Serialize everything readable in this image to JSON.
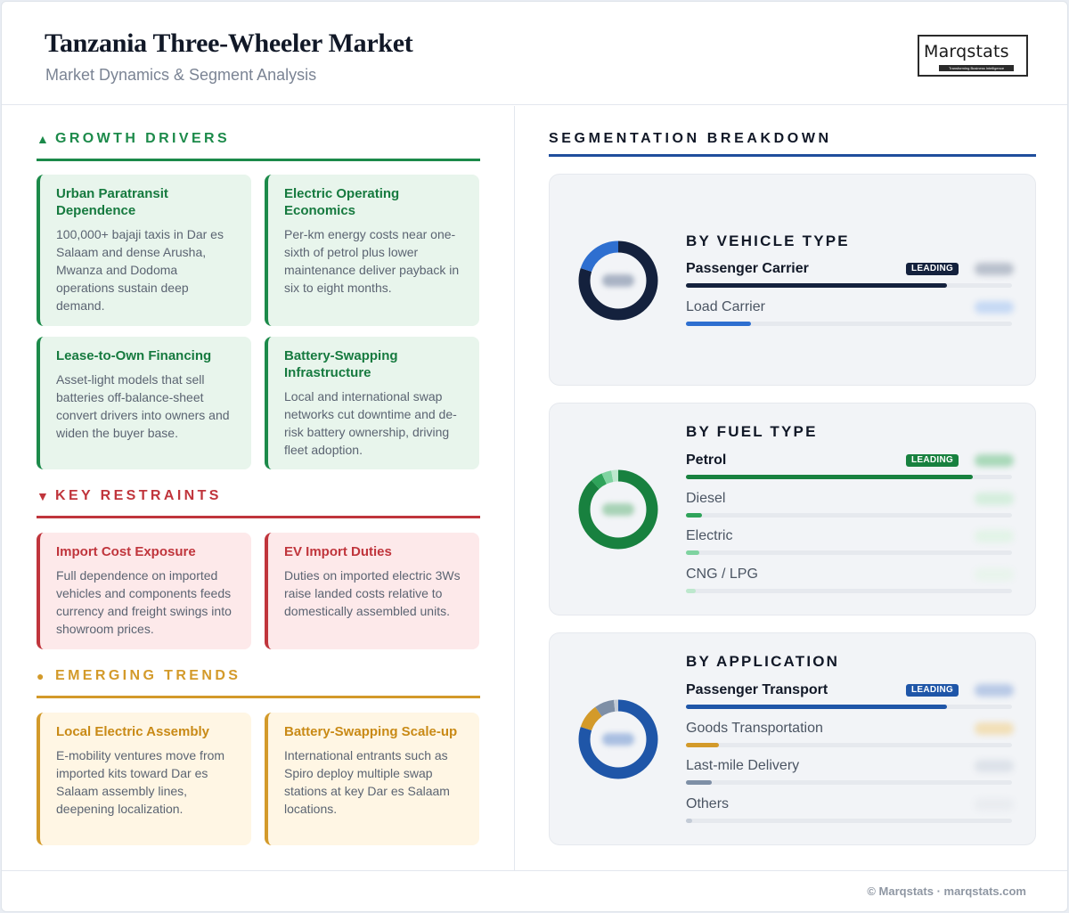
{
  "header": {
    "title": "Tanzania Three-Wheeler Market",
    "subtitle": "Market Dynamics & Segment Analysis",
    "logo_text": "Marqstats",
    "logo_tagline": "Transforming Business Intelligence"
  },
  "growth": {
    "marker": "▲",
    "label": "GROWTH DRIVERS",
    "color": "#1c8a4a",
    "cards": [
      {
        "title": "Urban Paratransit Dependence",
        "desc": "100,000+ bajaji taxis in Dar es Salaam and dense Arusha, Mwanza and Dodoma operations sustain deep demand."
      },
      {
        "title": "Electric Operating Economics",
        "desc": "Per-km energy costs near one-sixth of petrol plus lower maintenance deliver payback in six to eight months."
      },
      {
        "title": "Lease-to-Own Financing",
        "desc": "Asset-light models that sell batteries off-balance-sheet convert drivers into owners and widen the buyer base."
      },
      {
        "title": "Battery-Swapping Infrastructure",
        "desc": "Local and international swap networks cut downtime and de-risk battery ownership, driving fleet adoption."
      }
    ]
  },
  "restraints": {
    "marker": "▼",
    "label": "KEY RESTRAINTS",
    "color": "#c0353c",
    "cards": [
      {
        "title": "Import Cost Exposure",
        "desc": "Full dependence on imported vehicles and components feeds currency and freight swings into showroom prices."
      },
      {
        "title": "EV Import Duties",
        "desc": "Duties on imported electric 3Ws raise landed costs relative to domestically assembled units."
      }
    ]
  },
  "trends": {
    "marker": "●",
    "label": "EMERGING TRENDS",
    "color": "#d39a2a",
    "cards": [
      {
        "title": "Local Electric Assembly",
        "desc": "E-mobility ventures move from imported kits toward Dar es Salaam assembly lines, deepening localization."
      },
      {
        "title": "Battery-Swapping Scale-up",
        "desc": "International entrants such as Spiro deploy multiple swap stations at key Dar es Salaam locations."
      }
    ]
  },
  "segmentation": {
    "title": "SEGMENTATION BREAKDOWN",
    "leading_label": "LEADING",
    "panels": [
      {
        "title": "BY VEHICLE TYPE",
        "segments": [
          {
            "label": "Passenger Carrier",
            "share": 0.8,
            "color": "#14213d",
            "leading": true
          },
          {
            "label": "Load Carrier",
            "share": 0.2,
            "color": "#2e6fd0",
            "leading": false
          }
        ]
      },
      {
        "title": "BY FUEL TYPE",
        "segments": [
          {
            "label": "Petrol",
            "share": 0.88,
            "color": "#18813f",
            "leading": true
          },
          {
            "label": "Diesel",
            "share": 0.05,
            "color": "#2fa35a",
            "leading": false
          },
          {
            "label": "Electric",
            "share": 0.04,
            "color": "#7fd3a0",
            "leading": false
          },
          {
            "label": "CNG / LPG",
            "share": 0.03,
            "color": "#bde8cd",
            "leading": false
          }
        ]
      },
      {
        "title": "BY APPLICATION",
        "segments": [
          {
            "label": "Passenger Transport",
            "share": 0.8,
            "color": "#1f56a8",
            "leading": true
          },
          {
            "label": "Goods Transportation",
            "share": 0.1,
            "color": "#d39a2a",
            "leading": false
          },
          {
            "label": "Last-mile Delivery",
            "share": 0.08,
            "color": "#7e8fa6",
            "leading": false
          },
          {
            "label": "Others",
            "share": 0.02,
            "color": "#c3cbd6",
            "leading": false
          }
        ]
      }
    ]
  },
  "footer": {
    "text": "© Marqstats · marqstats.com"
  }
}
